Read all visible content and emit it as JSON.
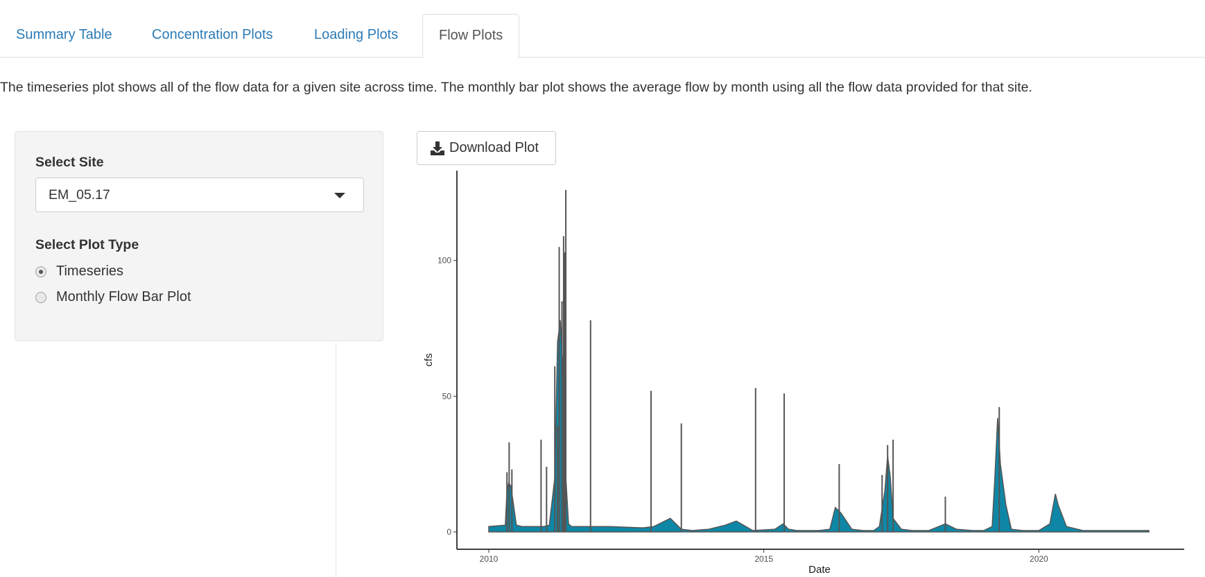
{
  "tabs": [
    {
      "label": "Summary Table",
      "active": false
    },
    {
      "label": "Concentration Plots",
      "active": false
    },
    {
      "label": "Loading Plots",
      "active": false
    },
    {
      "label": "Flow Plots",
      "active": true
    }
  ],
  "description": "The timeseries plot shows all of the flow data for a given site across time. The monthly bar plot shows the average flow by month using all the flow data provided for that site.",
  "sidebar": {
    "site_label": "Select Site",
    "site_value": "EM_05.17",
    "plot_type_label": "Select Plot Type",
    "plot_types": [
      {
        "label": "Timeseries",
        "checked": true
      },
      {
        "label": "Monthly Flow Bar Plot",
        "checked": false
      }
    ]
  },
  "download": {
    "label": "Download Plot",
    "icon": "download-icon"
  },
  "colors": {
    "accent": "#2c7bb6",
    "fill": "#0e87a6",
    "line": "#555555"
  },
  "chart_data": {
    "type": "area",
    "title": "",
    "xlabel": "Date",
    "ylabel": "cfs",
    "xlim": [
      2010.0,
      2022.1
    ],
    "ylim": [
      0,
      127
    ],
    "x_ticks": [
      2010,
      2015,
      2020
    ],
    "x_tick_labels": [
      "2010",
      "2015",
      "2020"
    ],
    "y_ticks": [
      0,
      50,
      100
    ],
    "y_tick_labels": [
      "0",
      "50",
      "100"
    ],
    "grid": false,
    "series": [
      {
        "x": [
          2010.0,
          2010.3,
          2010.33,
          2010.36,
          2010.4,
          2010.45,
          2010.5,
          2010.6,
          2010.8,
          2011.0,
          2011.1,
          2011.2,
          2011.25,
          2011.3,
          2011.35,
          2011.4,
          2011.45,
          2011.5,
          2011.6,
          2011.8,
          2012.2,
          2012.8,
          2013.0,
          2013.3,
          2013.4,
          2013.5,
          2013.7,
          2014.0,
          2014.3,
          2014.5,
          2014.8,
          2015.2,
          2015.35,
          2015.45,
          2015.6,
          2016.0,
          2016.2,
          2016.3,
          2016.4,
          2016.6,
          2016.8,
          2017.0,
          2017.1,
          2017.2,
          2017.25,
          2017.3,
          2017.35,
          2017.5,
          2017.7,
          2018.0,
          2018.3,
          2018.5,
          2018.8,
          2019.0,
          2019.15,
          2019.2,
          2019.25,
          2019.3,
          2019.4,
          2019.5,
          2019.7,
          2020.0,
          2020.2,
          2020.3,
          2020.35,
          2020.5,
          2020.8,
          2021.0,
          2021.5,
          2022.0
        ],
        "y": [
          2,
          2.5,
          15,
          18,
          17,
          10,
          2.5,
          2,
          2,
          2,
          2.5,
          20,
          70,
          78,
          60,
          20,
          3,
          2,
          2,
          2,
          2,
          1.5,
          2,
          5,
          3,
          1,
          0.5,
          1,
          2.5,
          4,
          0.5,
          1,
          3,
          1,
          0.5,
          0.5,
          1,
          9,
          7,
          1,
          0.5,
          0.5,
          2,
          15,
          28,
          20,
          5,
          1,
          0.5,
          0.5,
          3,
          1,
          0.5,
          0.5,
          2,
          20,
          42,
          25,
          10,
          1,
          0.5,
          0.5,
          3,
          14,
          10,
          2,
          0.5,
          0.5,
          0.5,
          0.5
        ]
      }
    ],
    "spikes": [
      {
        "x": 2010.33,
        "y": 22
      },
      {
        "x": 2010.37,
        "y": 33
      },
      {
        "x": 2010.42,
        "y": 23
      },
      {
        "x": 2010.95,
        "y": 34
      },
      {
        "x": 2011.05,
        "y": 24
      },
      {
        "x": 2011.2,
        "y": 61
      },
      {
        "x": 2011.25,
        "y": 39
      },
      {
        "x": 2011.28,
        "y": 105
      },
      {
        "x": 2011.33,
        "y": 85
      },
      {
        "x": 2011.36,
        "y": 109
      },
      {
        "x": 2011.38,
        "y": 103
      },
      {
        "x": 2011.4,
        "y": 126
      },
      {
        "x": 2011.85,
        "y": 78
      },
      {
        "x": 2012.95,
        "y": 52
      },
      {
        "x": 2013.5,
        "y": 40
      },
      {
        "x": 2014.85,
        "y": 53
      },
      {
        "x": 2015.37,
        "y": 51
      },
      {
        "x": 2016.37,
        "y": 25
      },
      {
        "x": 2017.15,
        "y": 21
      },
      {
        "x": 2017.25,
        "y": 32
      },
      {
        "x": 2017.35,
        "y": 34
      },
      {
        "x": 2018.3,
        "y": 13
      },
      {
        "x": 2019.28,
        "y": 46
      }
    ]
  }
}
